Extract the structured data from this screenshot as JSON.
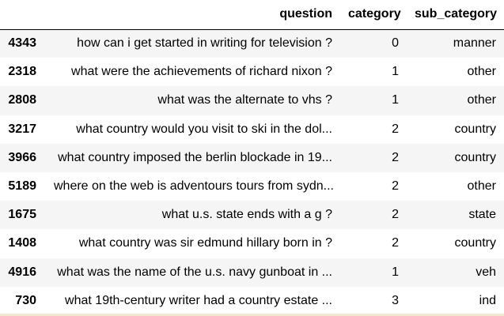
{
  "table": {
    "columns": {
      "index": "",
      "question": "question",
      "category": "category",
      "sub_category": "sub_category"
    },
    "rows": [
      {
        "index": "4343",
        "question": "how can i get started in writing for television ?",
        "category": "0",
        "sub_category": "manner"
      },
      {
        "index": "2318",
        "question": "what were the achievements of richard nixon ?",
        "category": "1",
        "sub_category": "other"
      },
      {
        "index": "2808",
        "question": "what was the alternate to vhs ?",
        "category": "1",
        "sub_category": "other"
      },
      {
        "index": "3217",
        "question": "what country would you visit to ski in the dol...",
        "category": "2",
        "sub_category": "country"
      },
      {
        "index": "3966",
        "question": "what country imposed the berlin blockade in 19...",
        "category": "2",
        "sub_category": "country"
      },
      {
        "index": "5189",
        "question": "where on the web is adventours tours from sydn...",
        "category": "2",
        "sub_category": "other"
      },
      {
        "index": "1675",
        "question": "what u.s. state ends with a g ?",
        "category": "2",
        "sub_category": "state"
      },
      {
        "index": "1408",
        "question": "what country was sir edmund hillary born in ?",
        "category": "2",
        "sub_category": "country"
      },
      {
        "index": "4916",
        "question": "what was the name of the u.s. navy gunboat in ...",
        "category": "1",
        "sub_category": "veh"
      },
      {
        "index": "730",
        "question": "what 19th-century writer had a country estate ...",
        "category": "3",
        "sub_category": "ind"
      }
    ]
  },
  "colors": {
    "header_border": "#000000",
    "stripe": "#f5f5f5",
    "background": "#ffffff"
  }
}
